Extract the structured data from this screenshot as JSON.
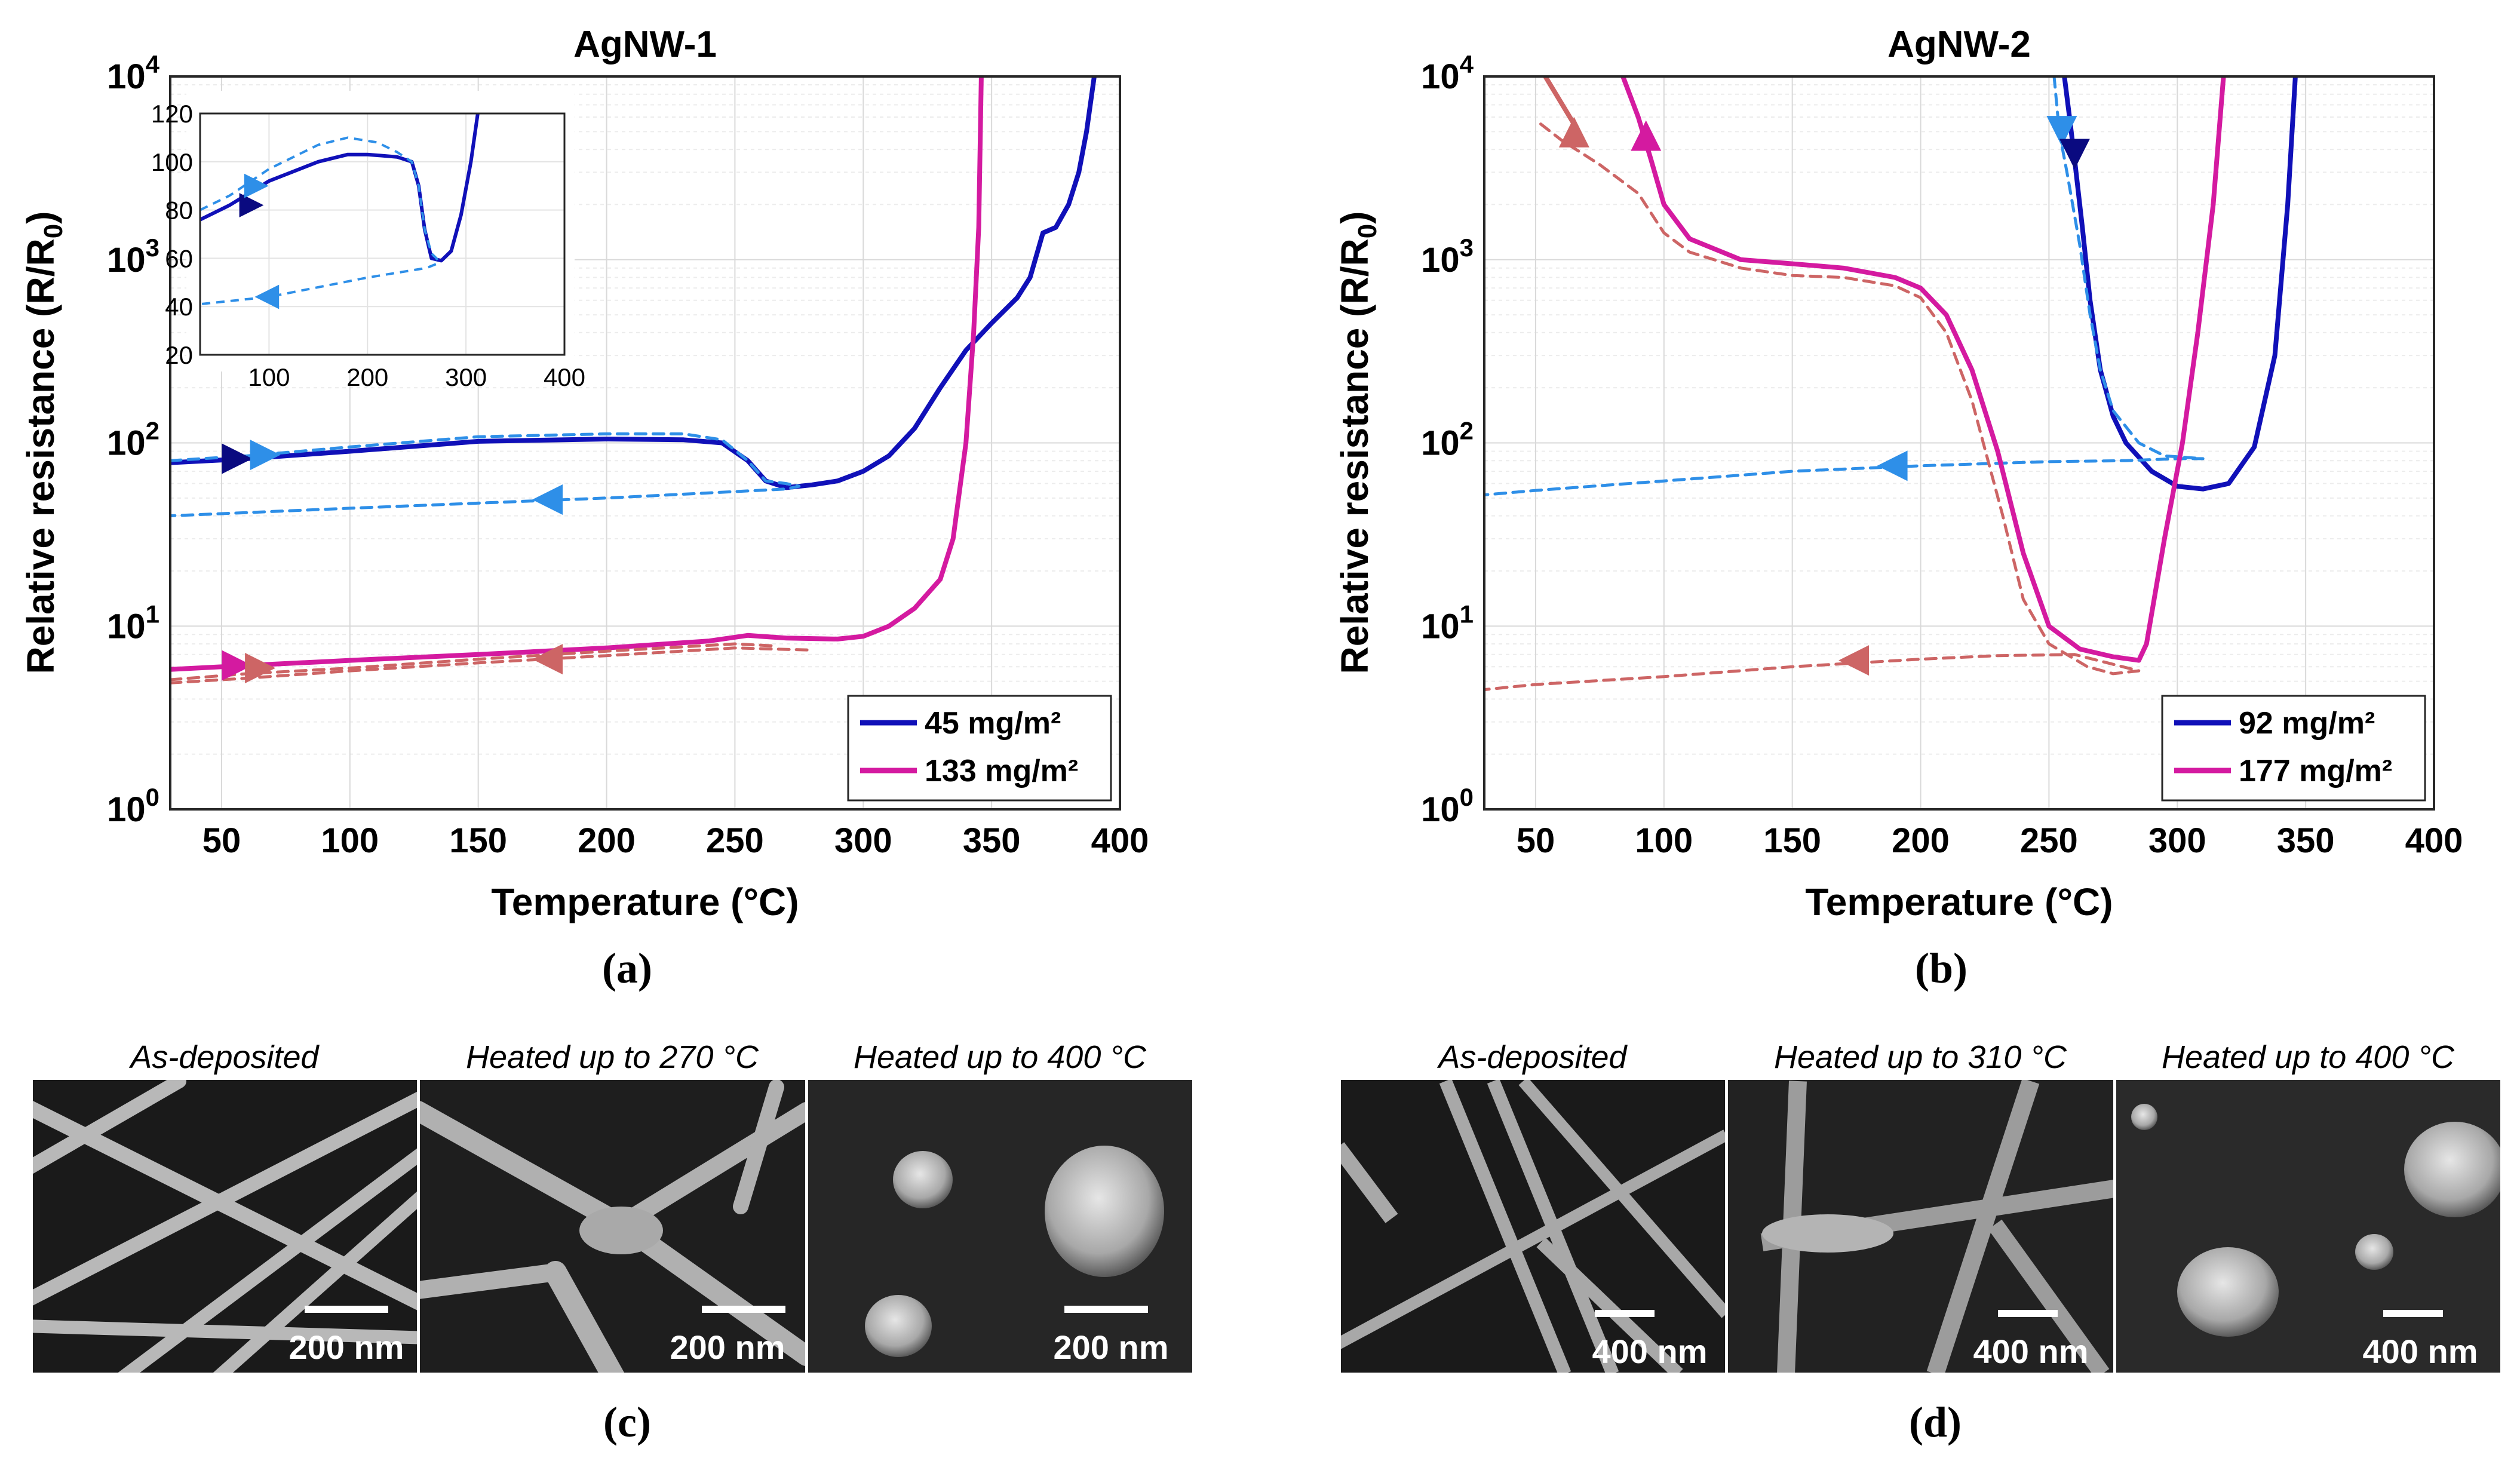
{
  "chart_data": [
    {
      "id": "a",
      "type": "line",
      "title": "AgNW-1",
      "panel_label": "(a)",
      "xlabel": "Temperature (°C)",
      "ylabel": "Relative resistance (R/R0)",
      "xlim": [
        30,
        400
      ],
      "ylim": [
        1,
        10000
      ],
      "yscale": "log",
      "xticks": [
        50,
        100,
        150,
        200,
        250,
        300,
        350,
        400
      ],
      "grid": true,
      "legend_position": "bottom-right",
      "series": [
        {
          "name": "45 mg/m²",
          "color": "#1010b8",
          "style": "solid",
          "points": [
            [
              30,
              78
            ],
            [
              60,
              82
            ],
            [
              100,
              90
            ],
            [
              150,
              102
            ],
            [
              200,
              105
            ],
            [
              230,
              104
            ],
            [
              245,
              100
            ],
            [
              255,
              80
            ],
            [
              262,
              62
            ],
            [
              270,
              57
            ],
            [
              280,
              59
            ],
            [
              290,
              62
            ],
            [
              300,
              70
            ],
            [
              310,
              85
            ],
            [
              320,
              120
            ],
            [
              330,
              200
            ],
            [
              340,
              320
            ],
            [
              350,
              450
            ],
            [
              360,
              620
            ],
            [
              365,
              800
            ],
            [
              370,
              1400
            ],
            [
              375,
              1500
            ],
            [
              380,
              2000
            ],
            [
              384,
              3000
            ],
            [
              387,
              5000
            ],
            [
              390,
              10000
            ]
          ]
        },
        {
          "name": "45 mg/m² cooling",
          "color": "#2e8fe8",
          "style": "dashed",
          "points": [
            [
              30,
              80
            ],
            [
              60,
              85
            ],
            [
              100,
              95
            ],
            [
              150,
              108
            ],
            [
              200,
              112
            ],
            [
              230,
              112
            ],
            [
              245,
              104
            ],
            [
              255,
              80
            ],
            [
              262,
              62
            ],
            [
              270,
              60
            ],
            [
              275,
              58
            ],
            [
              270,
              56
            ],
            [
              200,
              50
            ],
            [
              100,
              44
            ],
            [
              30,
              40
            ]
          ]
        },
        {
          "name": "133 mg/m²",
          "color": "#d41aa0",
          "style": "solid",
          "points": [
            [
              30,
              5.8
            ],
            [
              60,
              6.1
            ],
            [
              100,
              6.5
            ],
            [
              150,
              7.0
            ],
            [
              200,
              7.6
            ],
            [
              240,
              8.3
            ],
            [
              255,
              8.9
            ],
            [
              270,
              8.6
            ],
            [
              290,
              8.5
            ],
            [
              300,
              8.8
            ],
            [
              310,
              10
            ],
            [
              320,
              12.5
            ],
            [
              330,
              18
            ],
            [
              335,
              30
            ],
            [
              340,
              100
            ],
            [
              343,
              400
            ],
            [
              345,
              1500
            ],
            [
              346,
              10000
            ]
          ]
        },
        {
          "name": "133 mg/m² cooling",
          "color": "#cd6565",
          "style": "dashed",
          "points": [
            [
              30,
              4.9
            ],
            [
              60,
              5.2
            ],
            [
              100,
              5.7
            ],
            [
              150,
              6.3
            ],
            [
              200,
              6.9
            ],
            [
              250,
              7.6
            ],
            [
              280,
              7.4
            ]
          ]
        },
        {
          "name": "133 mg/m² cooling 2",
          "color": "#cd6565",
          "style": "dashed",
          "points": [
            [
              30,
              5.1
            ],
            [
              60,
              5.5
            ],
            [
              100,
              5.9
            ],
            [
              150,
              6.6
            ],
            [
              200,
              7.3
            ],
            [
              250,
              8.0
            ],
            [
              265,
              7.8
            ]
          ]
        }
      ],
      "direction_markers": [
        {
          "x": 55,
          "y": 82,
          "color": "#0a0a80",
          "dir": "right"
        },
        {
          "x": 66,
          "y": 86,
          "color": "#2e8fe8",
          "dir": "right"
        },
        {
          "x": 178,
          "y": 49,
          "color": "#2e8fe8",
          "dir": "left"
        },
        {
          "x": 55,
          "y": 6.1,
          "color": "#d41aa0",
          "dir": "right"
        },
        {
          "x": 64,
          "y": 5.9,
          "color": "#cd6565",
          "dir": "right"
        },
        {
          "x": 178,
          "y": 6.6,
          "color": "#cd6565",
          "dir": "left"
        }
      ],
      "inset": {
        "xlim": [
          30,
          400
        ],
        "ylim": [
          20,
          120
        ],
        "xticks": [
          100,
          200,
          300,
          400
        ],
        "yticks": [
          20,
          40,
          60,
          80,
          100,
          120
        ],
        "series": [
          {
            "color": "#1010b8",
            "style": "solid",
            "points": [
              [
                30,
                76
              ],
              [
                60,
                82
              ],
              [
                100,
                92
              ],
              [
                150,
                100
              ],
              [
                180,
                103
              ],
              [
                200,
                103
              ],
              [
                230,
                102
              ],
              [
                245,
                100
              ],
              [
                252,
                90
              ],
              [
                258,
                72
              ],
              [
                265,
                60
              ],
              [
                275,
                59
              ],
              [
                285,
                63
              ],
              [
                295,
                78
              ],
              [
                305,
                100
              ],
              [
                312,
                120
              ]
            ]
          },
          {
            "color": "#2e8fe8",
            "style": "dashed",
            "points": [
              [
                30,
                80
              ],
              [
                60,
                86
              ],
              [
                100,
                97
              ],
              [
                150,
                107
              ],
              [
                180,
                110
              ],
              [
                210,
                108
              ],
              [
                230,
                104
              ],
              [
                245,
                100
              ],
              [
                252,
                90
              ],
              [
                258,
                72
              ],
              [
                265,
                62
              ],
              [
                270,
                60
              ],
              [
                272,
                58
              ],
              [
                260,
                56
              ],
              [
                200,
                52
              ],
              [
                150,
                48
              ],
              [
                100,
                44
              ],
              [
                30,
                41
              ]
            ]
          }
        ],
        "direction_markers": [
          {
            "x": 80,
            "y": 82,
            "color": "#0a0a80",
            "dir": "right"
          },
          {
            "x": 85,
            "y": 90,
            "color": "#2e8fe8",
            "dir": "right"
          },
          {
            "x": 100,
            "y": 44,
            "color": "#2e8fe8",
            "dir": "left"
          }
        ]
      }
    },
    {
      "id": "b",
      "type": "line",
      "title": "AgNW-2",
      "panel_label": "(b)",
      "xlabel": "Temperature (°C)",
      "ylabel": "Relative resistance (R/R0)",
      "xlim": [
        30,
        400
      ],
      "ylim": [
        1,
        10000
      ],
      "yscale": "log",
      "xticks": [
        50,
        100,
        150,
        200,
        250,
        300,
        350,
        400
      ],
      "grid": true,
      "legend_position": "bottom-right",
      "series": [
        {
          "name": "92 mg/m²",
          "color": "#1010b8",
          "style": "solid",
          "points": [
            [
              256,
              10000
            ],
            [
              258,
              6000
            ],
            [
              260,
              3500
            ],
            [
              263,
              1500
            ],
            [
              266,
              600
            ],
            [
              270,
              250
            ],
            [
              275,
              140
            ],
            [
              280,
              100
            ],
            [
              290,
              70
            ],
            [
              300,
              58
            ],
            [
              310,
              56
            ],
            [
              320,
              60
            ],
            [
              330,
              95
            ],
            [
              338,
              300
            ],
            [
              343,
              2000
            ],
            [
              346,
              10000
            ]
          ]
        },
        {
          "name": "92 mg/m² cooling",
          "color": "#2e8fe8",
          "style": "dashed",
          "points": [
            [
              252,
              10000
            ],
            [
              254,
              5000
            ],
            [
              257,
              3000
            ],
            [
              262,
              1200
            ],
            [
              266,
              500
            ],
            [
              270,
              250
            ],
            [
              275,
              150
            ],
            [
              285,
              100
            ],
            [
              295,
              85
            ],
            [
              310,
              82
            ],
            [
              300,
              82
            ],
            [
              280,
              80
            ],
            [
              250,
              79
            ],
            [
              200,
              75
            ],
            [
              150,
              70
            ],
            [
              100,
              62
            ],
            [
              50,
              55
            ],
            [
              30,
              52
            ]
          ]
        },
        {
          "name": "177 mg/m²",
          "color": "#d41aa0",
          "style": "solid",
          "points": [
            [
              84,
              10000
            ],
            [
              90,
              6000
            ],
            [
              95,
              3500
            ],
            [
              100,
              2000
            ],
            [
              110,
              1300
            ],
            [
              130,
              1000
            ],
            [
              150,
              950
            ],
            [
              170,
              900
            ],
            [
              190,
              800
            ],
            [
              200,
              700
            ],
            [
              210,
              500
            ],
            [
              220,
              250
            ],
            [
              230,
              90
            ],
            [
              240,
              25
            ],
            [
              250,
              10
            ],
            [
              262,
              7.5
            ],
            [
              275,
              6.8
            ],
            [
              285,
              6.5
            ],
            [
              288,
              8
            ],
            [
              295,
              30
            ],
            [
              302,
              100
            ],
            [
              308,
              400
            ],
            [
              314,
              2000
            ],
            [
              318,
              10000
            ]
          ]
        },
        {
          "name": "177 mg/m² cooling",
          "color": "#cd6565",
          "style": "dashed",
          "points": [
            [
              52,
              5500
            ],
            [
              60,
              4500
            ],
            [
              75,
              3300
            ],
            [
              90,
              2300
            ],
            [
              100,
              1400
            ],
            [
              110,
              1100
            ],
            [
              130,
              900
            ],
            [
              150,
              820
            ],
            [
              170,
              800
            ],
            [
              190,
              720
            ],
            [
              200,
              620
            ],
            [
              210,
              400
            ],
            [
              220,
              170
            ],
            [
              232,
              40
            ],
            [
              240,
              14
            ],
            [
              250,
              8
            ],
            [
              265,
              6
            ],
            [
              275,
              5.5
            ],
            [
              285,
              5.7
            ],
            [
              260,
              7.0
            ],
            [
              230,
              6.9
            ],
            [
              200,
              6.6
            ],
            [
              150,
              6.0
            ],
            [
              100,
              5.3
            ],
            [
              50,
              4.8
            ],
            [
              30,
              4.5
            ]
          ]
        },
        {
          "name": "177 mg/m² connector",
          "color": "#cd6565",
          "style": "solid",
          "points": [
            [
              52,
              11000
            ],
            [
              66,
              5200
            ]
          ]
        }
      ],
      "direction_markers": [
        {
          "x": 65,
          "y": 4800,
          "color": "#cd6565",
          "dir": "up"
        },
        {
          "x": 93,
          "y": 4600,
          "color": "#d41aa0",
          "dir": "up"
        },
        {
          "x": 255,
          "y": 5200,
          "color": "#2e8fe8",
          "dir": "down"
        },
        {
          "x": 260,
          "y": 3900,
          "color": "#0a0a80",
          "dir": "down"
        },
        {
          "x": 190,
          "y": 75,
          "color": "#2e8fe8",
          "dir": "left"
        },
        {
          "x": 175,
          "y": 6.5,
          "color": "#cd6565",
          "dir": "left"
        }
      ]
    }
  ],
  "sem_panels": [
    {
      "panel_label": "(c)",
      "images": [
        {
          "caption": "As-deposited",
          "scale_bar": "200 nm"
        },
        {
          "caption": "Heated up to 270 °C",
          "scale_bar": "200 nm"
        },
        {
          "caption": "Heated up to 400 °C",
          "scale_bar": "200 nm"
        }
      ]
    },
    {
      "panel_label": "(d)",
      "images": [
        {
          "caption": "As-deposited",
          "scale_bar": "400 nm"
        },
        {
          "caption": "Heated up to 310 °C",
          "scale_bar": "400 nm"
        },
        {
          "caption": "Heated up to 400 °C",
          "scale_bar": "400 nm"
        }
      ]
    }
  ]
}
